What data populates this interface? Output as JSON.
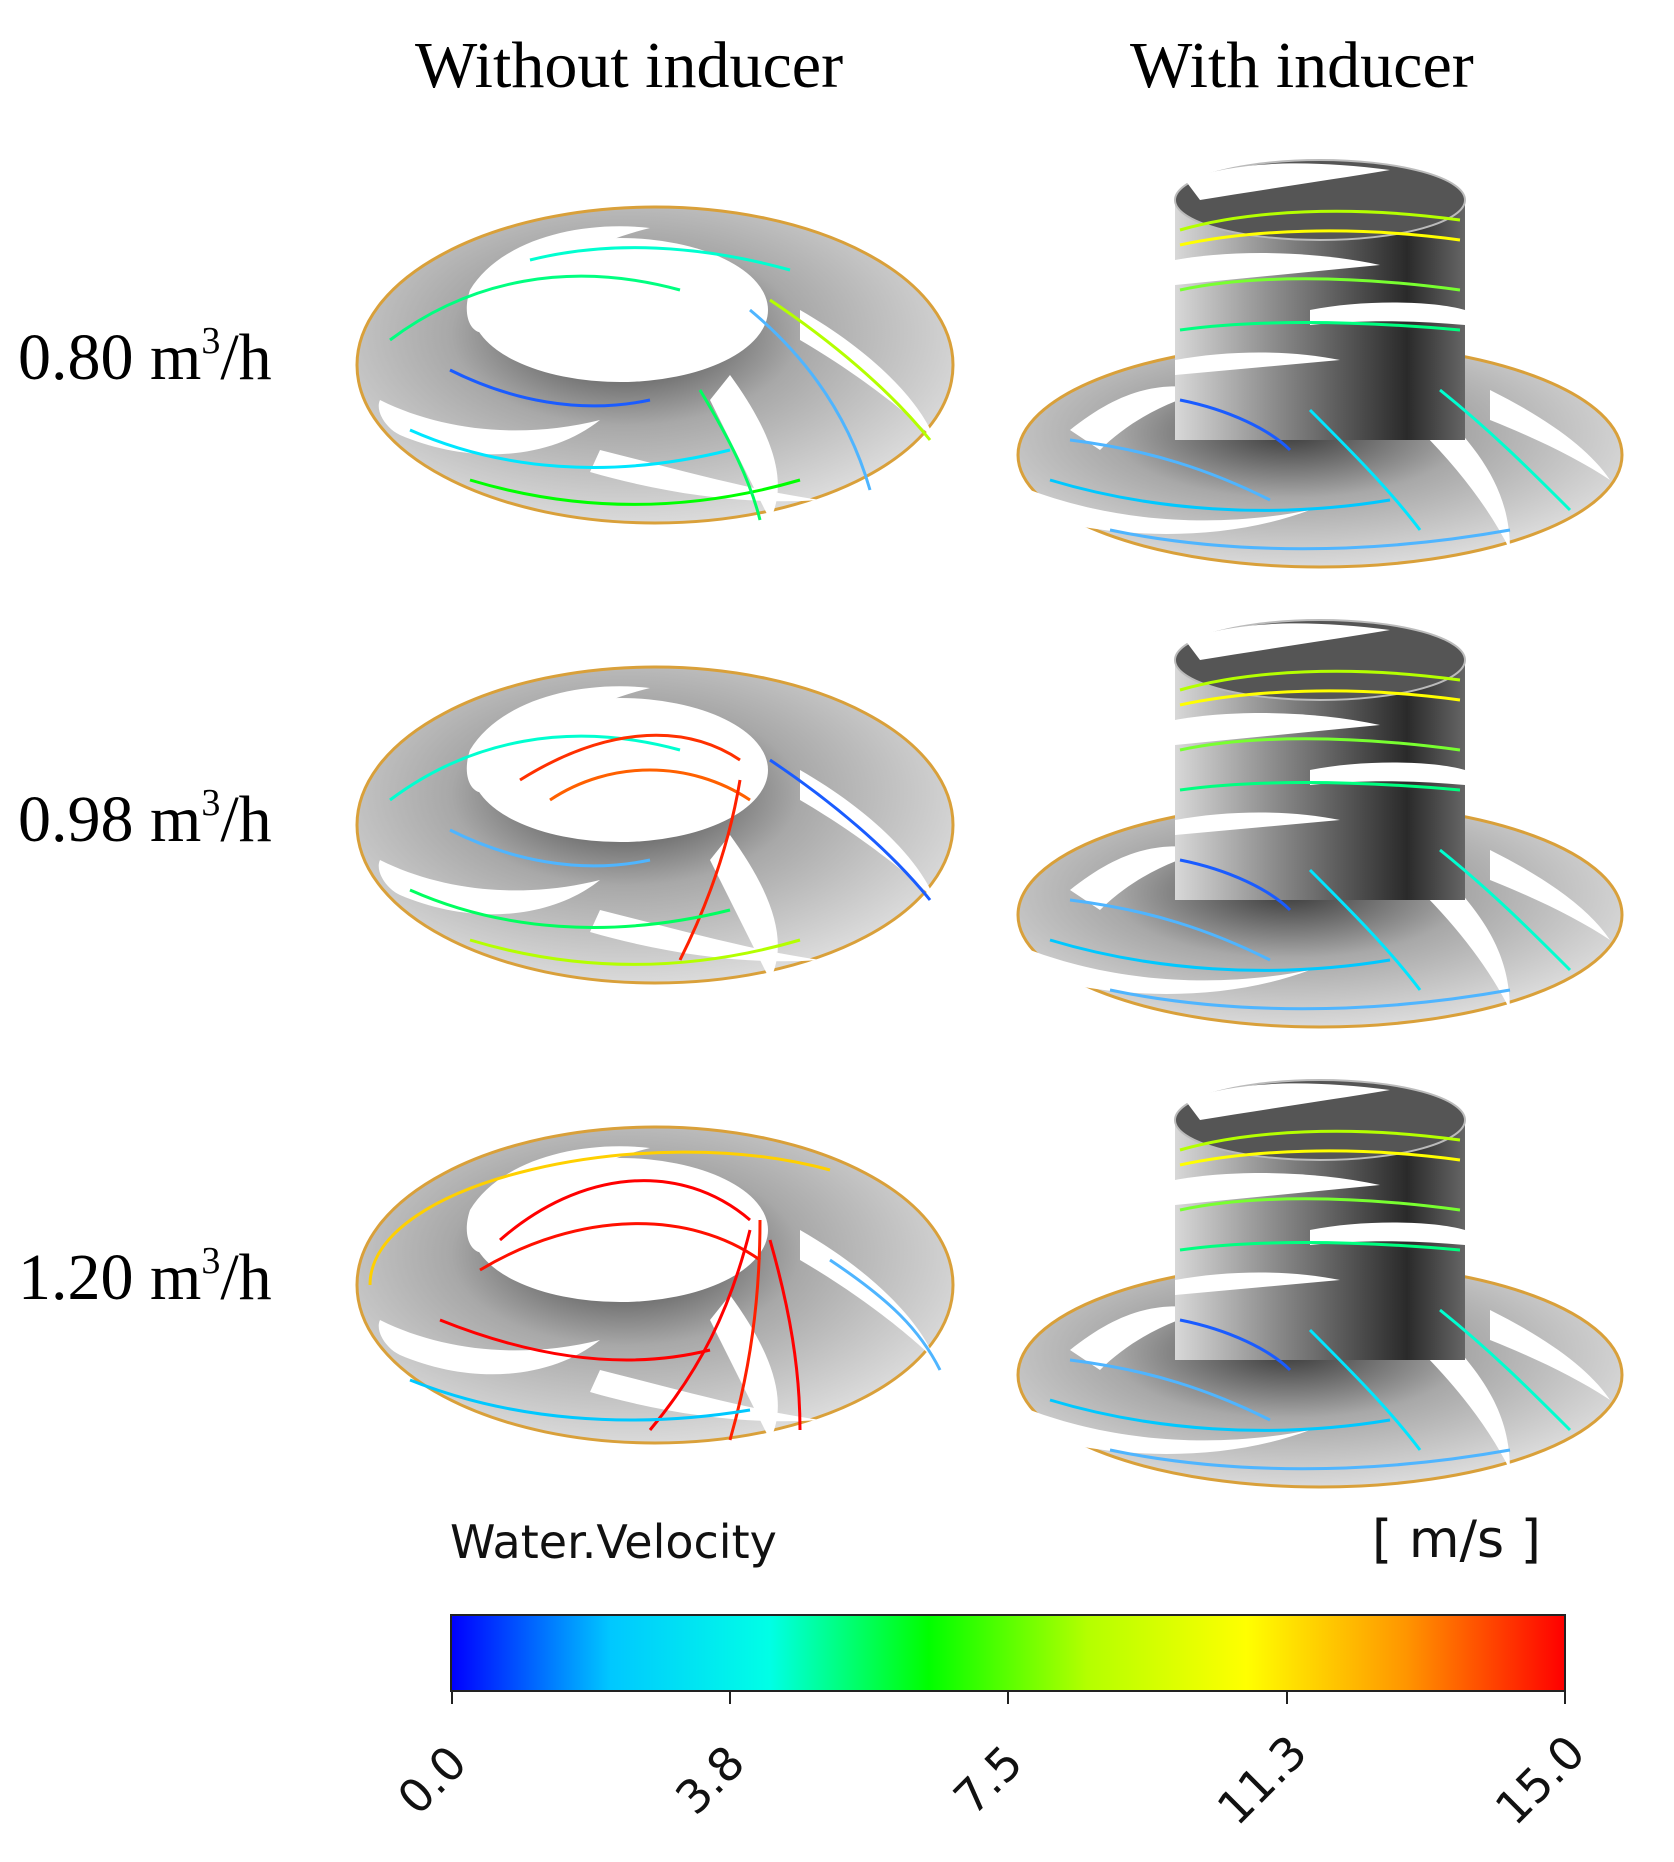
{
  "columns": [
    "Without inducer",
    "With inducer"
  ],
  "rows": [
    {
      "label": "0.80 m",
      "sup": "3",
      "suffix": "/h",
      "flow": 0.8
    },
    {
      "label": "0.98 m",
      "sup": "3",
      "suffix": "/h",
      "flow": 0.98
    },
    {
      "label": "1.20 m",
      "sup": "3",
      "suffix": "/h",
      "flow": 1.2
    }
  ],
  "legend": {
    "title": "Water.Velocity",
    "unit": "[ m/s ]",
    "ticks": [
      "0.0",
      "3.8",
      "7.5",
      "11.3",
      "15.0"
    ],
    "min": 0.0,
    "max": 15.0,
    "colors": [
      "#0000ff",
      "#00c8ff",
      "#00ffe6",
      "#00ff00",
      "#b4ff00",
      "#ffff00",
      "#ff9600",
      "#ff0000"
    ]
  }
}
